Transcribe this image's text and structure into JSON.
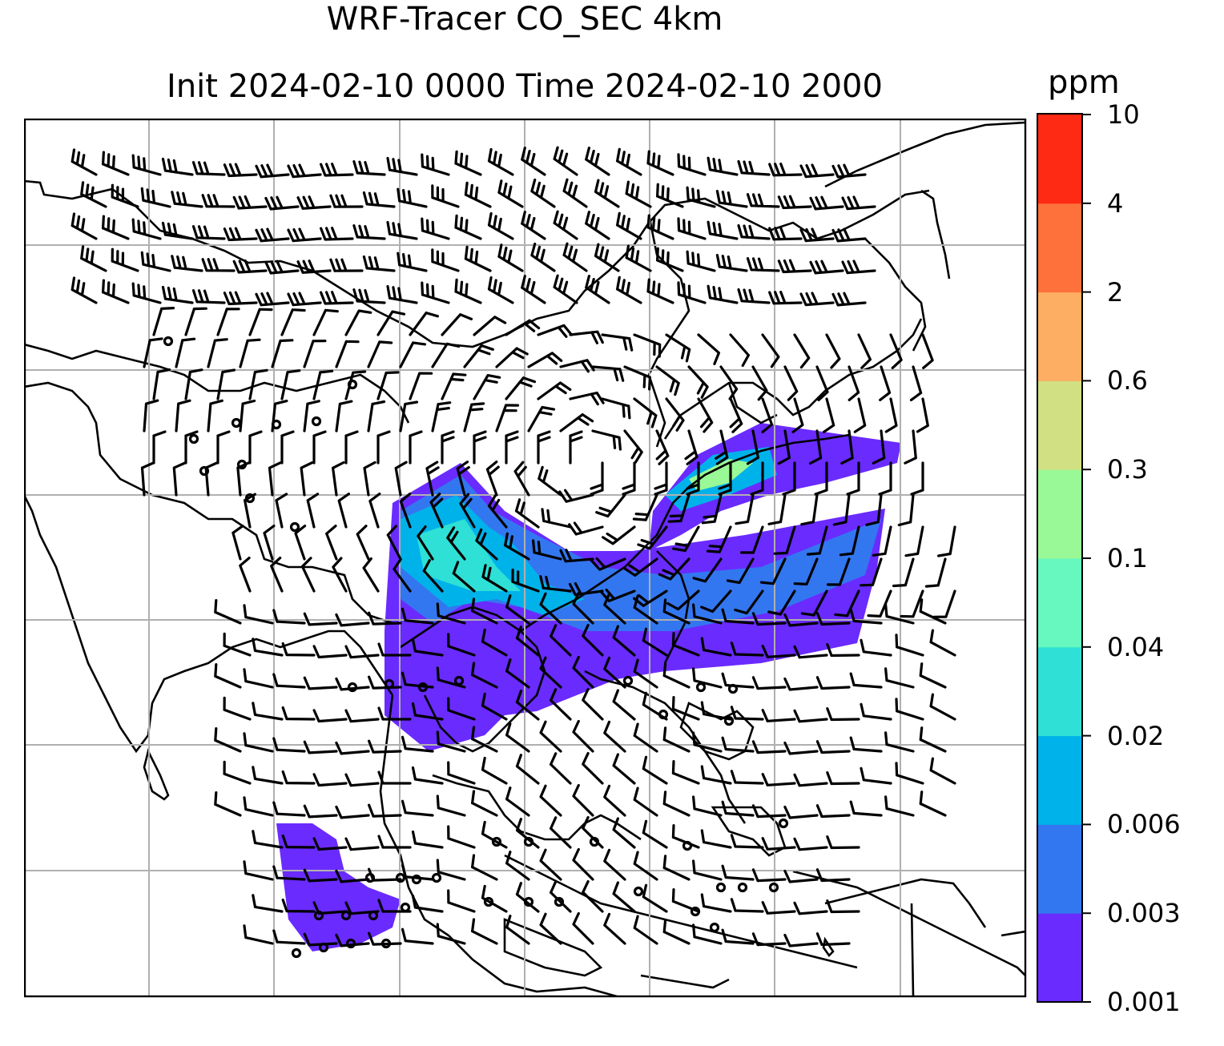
{
  "title": {
    "line1": "WRF-Tracer CO_SEC 4km",
    "line2": "Init 2024-02-10 0000 Time 2024-02-10 2000"
  },
  "colorbar": {
    "unit": "ppm",
    "ticks": [
      "0.001",
      "0.003",
      "0.006",
      "0.02",
      "0.04",
      "0.1",
      "0.3",
      "0.6",
      "2",
      "4",
      "10"
    ],
    "colors": [
      "#6a2bff",
      "#3377f0",
      "#00b2ea",
      "#2ee0d5",
      "#66f8bf",
      "#99f996",
      "#d0e083",
      "#fdae62",
      "#ff713a",
      "#ff2a14"
    ]
  },
  "map": {
    "projection": "lat-lon grid",
    "gridlines": true,
    "plume_colors": {
      "low": "#6a2bff",
      "mid": "#3377f0",
      "high": "#00b2ea",
      "peak": "#2ee0d5",
      "max": "#99f996"
    },
    "wind_barbs": true
  }
}
